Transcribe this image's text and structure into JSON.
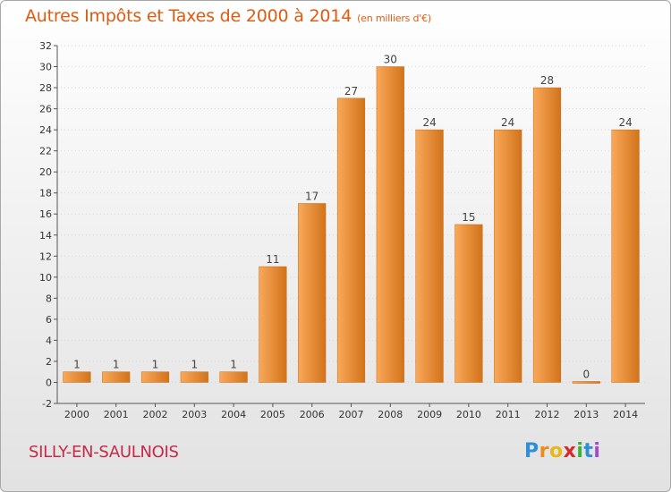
{
  "title": "Autres Impôts et Taxes de 2000 à 2014",
  "title_unit": "(en milliers d'€)",
  "commune": "SILLY-EN-SAULNOIS",
  "brand": {
    "letters": [
      "P",
      "r",
      "o",
      "x",
      "i",
      "t",
      "i"
    ],
    "colors": [
      "#2e8fd6",
      "#f08a18",
      "#e8b818",
      "#d82a2a",
      "#3ab23a",
      "#2e8fd6",
      "#a24ad0"
    ]
  },
  "colors": {
    "bar_light": "#f9a85a",
    "bar_dark": "#d2731a",
    "title": "#e05a10",
    "commune": "#c8284a"
  },
  "chart_data": {
    "type": "bar",
    "title": "Autres Impôts et Taxes de 2000 à 2014",
    "subtitle": "(en milliers d'€)",
    "xlabel": "",
    "ylabel": "",
    "categories": [
      "2000",
      "2001",
      "2002",
      "2003",
      "2004",
      "2005",
      "2006",
      "2007",
      "2008",
      "2009",
      "2010",
      "2011",
      "2012",
      "2013",
      "2014"
    ],
    "values": [
      1,
      1,
      1,
      1,
      1,
      11,
      17,
      27,
      30,
      24,
      15,
      24,
      28,
      0,
      24
    ],
    "value_labels": [
      "1",
      "1",
      "1",
      "1",
      "1",
      "11",
      "17",
      "27",
      "30",
      "24",
      "15",
      "24",
      "28",
      "0",
      "24"
    ],
    "ylim": [
      -2,
      32
    ],
    "yticks": [
      "-2",
      "0",
      "2",
      "4",
      "6",
      "8",
      "10",
      "12",
      "14",
      "16",
      "18",
      "20",
      "22",
      "24",
      "26",
      "28",
      "30",
      "32"
    ],
    "grid": true
  }
}
